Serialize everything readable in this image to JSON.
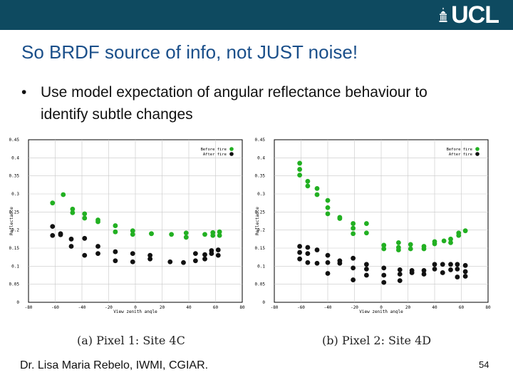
{
  "header": {
    "logo_text": "UCL",
    "logo_icon": "ucl-portico-icon"
  },
  "slide": {
    "title": "So BRDF source of info, not JUST noise!",
    "bullet_marker": "•",
    "bullet": "Use model expectation of angular reflectance behaviour to identify subtle changes",
    "footer": "Dr. Lisa Maria Rebelo, IWMI, CGIAR.",
    "page_number": "54"
  },
  "colors": {
    "banner": "#0e4a60",
    "title": "#1a4f8a",
    "before_fire": "#22b022",
    "after_fire": "#111111"
  },
  "chart_data": [
    {
      "type": "scatter",
      "caption": "(a) Pixel 1: Site 4C",
      "xlabel": "View zenith angle",
      "ylabel": "Reflectance",
      "xlim": [
        -80,
        80
      ],
      "ylim": [
        0,
        0.45
      ],
      "xticks": [
        "-80",
        "-60",
        "-40",
        "-20",
        "0",
        "20",
        "40",
        "60",
        "80"
      ],
      "yticks": [
        "0",
        "0.05",
        "0.1",
        "0.15",
        "0.2",
        "0.25",
        "0.3",
        "0.35",
        "0.4",
        "0.45"
      ],
      "grid": true,
      "legend_position": "top-right",
      "series": [
        {
          "name": "Before fire",
          "color": "#22b022",
          "points": [
            [
              -62,
              0.275
            ],
            [
              -54,
              0.298
            ],
            [
              -47,
              0.258
            ],
            [
              -47,
              0.248
            ],
            [
              -38,
              0.245
            ],
            [
              -38,
              0.233
            ],
            [
              -28,
              0.228
            ],
            [
              -28,
              0.223
            ],
            [
              -15,
              0.212
            ],
            [
              -15,
              0.195
            ],
            [
              -2,
              0.198
            ],
            [
              -2,
              0.188
            ],
            [
              12,
              0.19
            ],
            [
              12,
              0.19
            ],
            [
              27,
              0.188
            ],
            [
              38,
              0.192
            ],
            [
              38,
              0.18
            ],
            [
              52,
              0.188
            ],
            [
              58,
              0.193
            ],
            [
              58,
              0.185
            ],
            [
              63,
              0.195
            ],
            [
              63,
              0.185
            ]
          ]
        },
        {
          "name": "After fire",
          "color": "#111111",
          "points": [
            [
              -62,
              0.21
            ],
            [
              -62,
              0.185
            ],
            [
              -56,
              0.19
            ],
            [
              -56,
              0.187
            ],
            [
              -48,
              0.175
            ],
            [
              -48,
              0.155
            ],
            [
              -38,
              0.177
            ],
            [
              -38,
              0.13
            ],
            [
              -28,
              0.155
            ],
            [
              -28,
              0.135
            ],
            [
              -15,
              0.14
            ],
            [
              -15,
              0.115
            ],
            [
              -2,
              0.135
            ],
            [
              -2,
              0.112
            ],
            [
              11,
              0.13
            ],
            [
              11,
              0.12
            ],
            [
              26,
              0.112
            ],
            [
              36,
              0.11
            ],
            [
              45,
              0.135
            ],
            [
              45,
              0.115
            ],
            [
              52,
              0.132
            ],
            [
              52,
              0.12
            ],
            [
              57,
              0.143
            ],
            [
              57,
              0.135
            ],
            [
              62,
              0.145
            ],
            [
              62,
              0.13
            ]
          ]
        }
      ]
    },
    {
      "type": "scatter",
      "caption": "(b) Pixel 2: Site 4D",
      "xlabel": "View zenith angle",
      "ylabel": "Reflectance",
      "xlim": [
        -80,
        80
      ],
      "ylim": [
        0,
        0.45
      ],
      "xticks": [
        "-80",
        "-60",
        "-40",
        "-20",
        "0",
        "20",
        "40",
        "60",
        "80"
      ],
      "yticks": [
        "0",
        "0.05",
        "0.1",
        "0.15",
        "0.2",
        "0.25",
        "0.3",
        "0.35",
        "0.4",
        "0.45"
      ],
      "grid": true,
      "legend_position": "top-right",
      "series": [
        {
          "name": "Before fire",
          "color": "#22b022",
          "points": [
            [
              -61,
              0.385
            ],
            [
              -61,
              0.368
            ],
            [
              -61,
              0.352
            ],
            [
              -55,
              0.335
            ],
            [
              -55,
              0.322
            ],
            [
              -48,
              0.315
            ],
            [
              -48,
              0.298
            ],
            [
              -40,
              0.282
            ],
            [
              -40,
              0.262
            ],
            [
              -40,
              0.245
            ],
            [
              -31,
              0.235
            ],
            [
              -31,
              0.232
            ],
            [
              -21,
              0.218
            ],
            [
              -21,
              0.205
            ],
            [
              -21,
              0.19
            ],
            [
              -11,
              0.218
            ],
            [
              -11,
              0.192
            ],
            [
              2,
              0.158
            ],
            [
              2,
              0.148
            ],
            [
              13,
              0.165
            ],
            [
              13,
              0.152
            ],
            [
              13,
              0.145
            ],
            [
              22,
              0.16
            ],
            [
              22,
              0.148
            ],
            [
              32,
              0.155
            ],
            [
              32,
              0.148
            ],
            [
              40,
              0.168
            ],
            [
              40,
              0.162
            ],
            [
              47,
              0.17
            ],
            [
              52,
              0.175
            ],
            [
              52,
              0.165
            ],
            [
              58,
              0.192
            ],
            [
              58,
              0.185
            ],
            [
              63,
              0.198
            ]
          ]
        },
        {
          "name": "After fire",
          "color": "#111111",
          "points": [
            [
              -61,
              0.155
            ],
            [
              -61,
              0.138
            ],
            [
              -61,
              0.12
            ],
            [
              -55,
              0.152
            ],
            [
              -55,
              0.135
            ],
            [
              -55,
              0.11
            ],
            [
              -48,
              0.145
            ],
            [
              -48,
              0.108
            ],
            [
              -40,
              0.13
            ],
            [
              -40,
              0.11
            ],
            [
              -40,
              0.08
            ],
            [
              -31,
              0.115
            ],
            [
              -31,
              0.108
            ],
            [
              -21,
              0.122
            ],
            [
              -21,
              0.095
            ],
            [
              -21,
              0.062
            ],
            [
              -11,
              0.105
            ],
            [
              -11,
              0.092
            ],
            [
              -11,
              0.075
            ],
            [
              2,
              0.095
            ],
            [
              2,
              0.075
            ],
            [
              2,
              0.055
            ],
            [
              14,
              0.09
            ],
            [
              14,
              0.078
            ],
            [
              14,
              0.06
            ],
            [
              23,
              0.088
            ],
            [
              23,
              0.082
            ],
            [
              32,
              0.088
            ],
            [
              32,
              0.078
            ],
            [
              40,
              0.105
            ],
            [
              40,
              0.092
            ],
            [
              46,
              0.105
            ],
            [
              46,
              0.082
            ],
            [
              52,
              0.105
            ],
            [
              52,
              0.09
            ],
            [
              57,
              0.105
            ],
            [
              57,
              0.092
            ],
            [
              57,
              0.07
            ],
            [
              63,
              0.102
            ],
            [
              63,
              0.085
            ],
            [
              63,
              0.072
            ]
          ]
        }
      ]
    }
  ]
}
